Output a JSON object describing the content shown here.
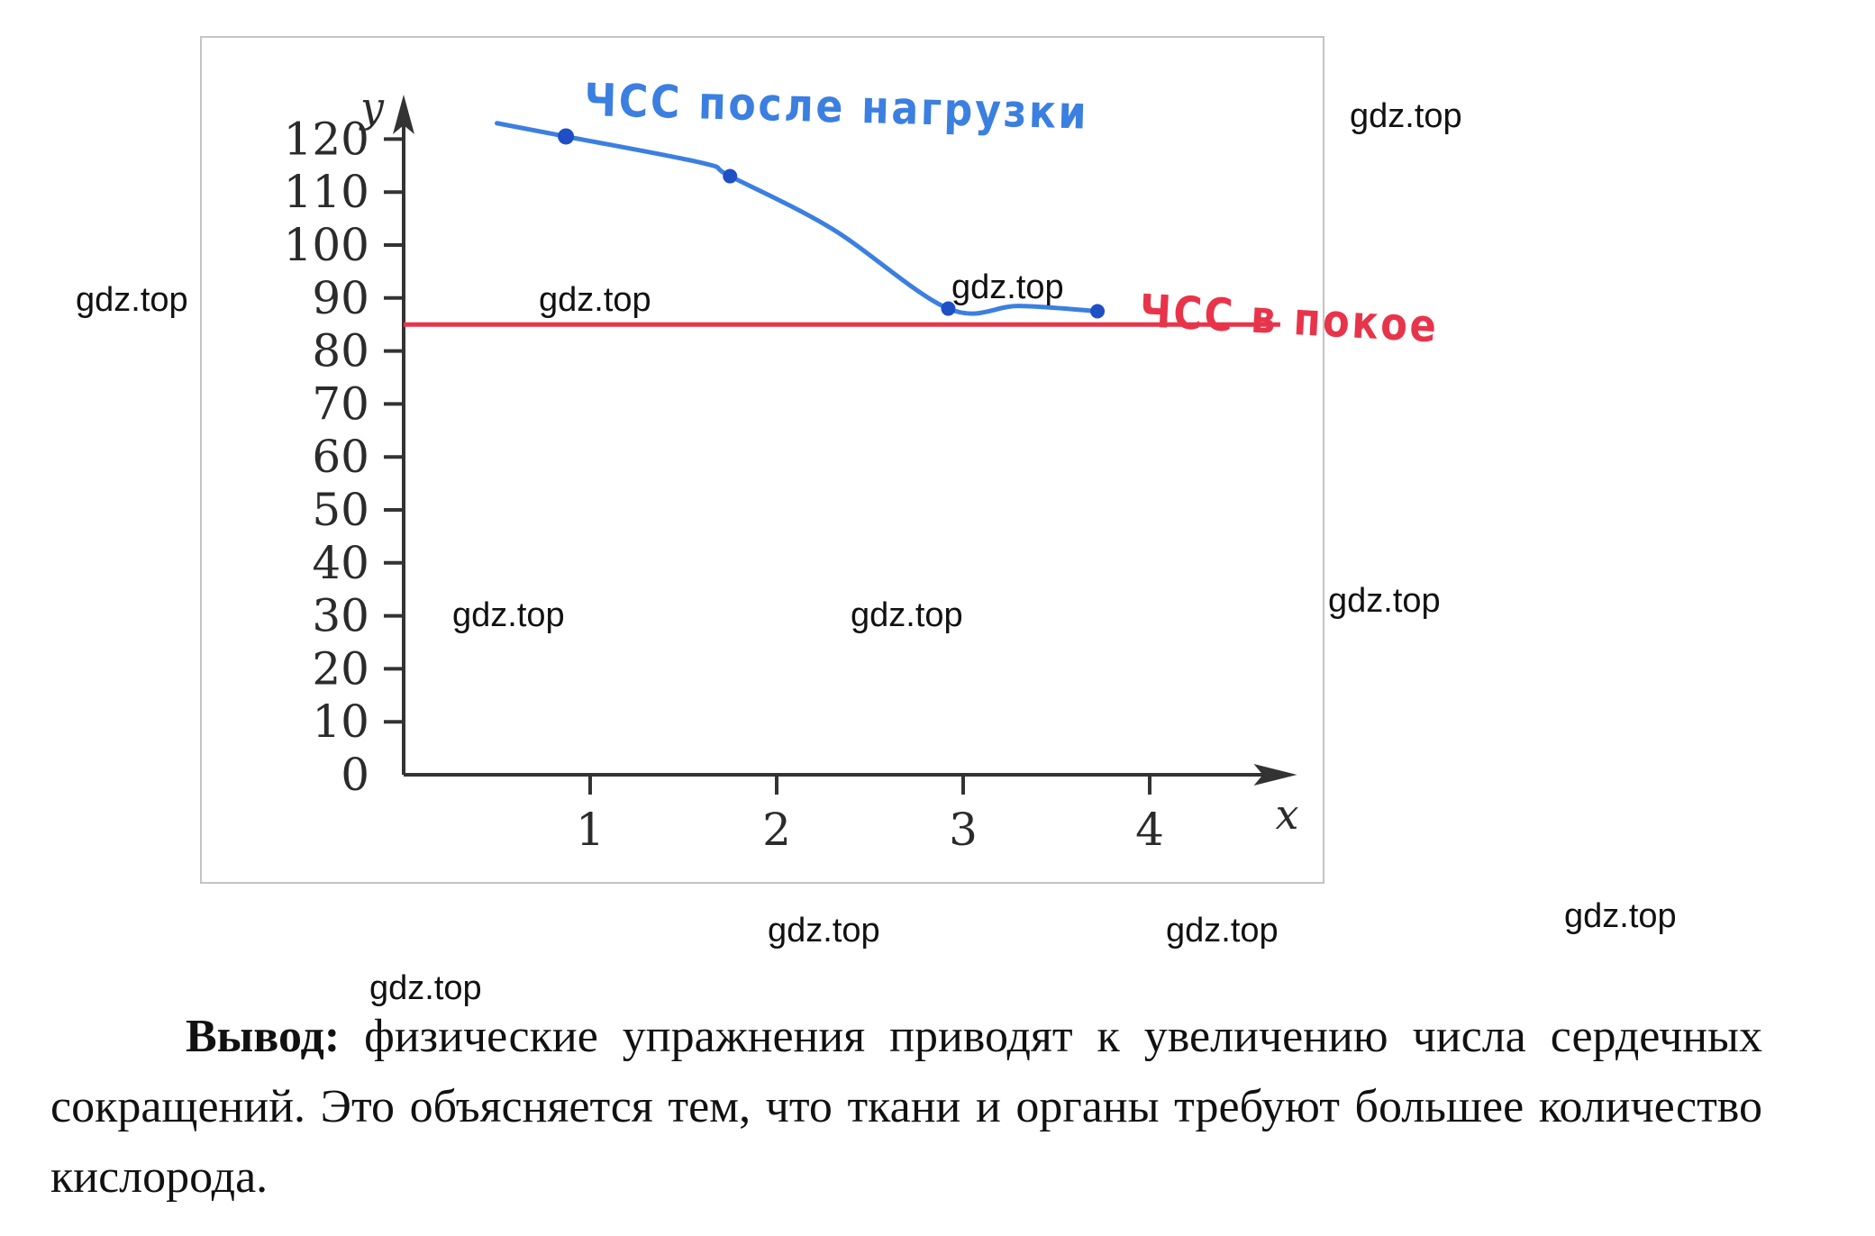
{
  "chart_data": {
    "type": "line",
    "title": "",
    "xlabel": "x",
    "ylabel": "y",
    "xlim": [
      0,
      4.5
    ],
    "ylim": [
      0,
      125
    ],
    "x_ticks": [
      1,
      2,
      3,
      4
    ],
    "y_ticks": [
      0,
      10,
      20,
      30,
      40,
      50,
      60,
      70,
      80,
      90,
      100,
      110,
      120
    ],
    "grid": false,
    "series": [
      {
        "name": "ЧСС после нагрузки",
        "color": "#3b7fe0",
        "x": [
          0.5,
          0.87,
          1.6,
          1.75,
          2.3,
          2.92,
          3.3,
          3.72
        ],
        "y": [
          123,
          120.5,
          115.5,
          113,
          103,
          88,
          88.5,
          87.5
        ],
        "markers_x": [
          0.87,
          1.75,
          2.92,
          3.72
        ],
        "markers_y": [
          120.5,
          113,
          88,
          87.5
        ]
      },
      {
        "name": "ЧСС в покое",
        "color": "#e8344a",
        "x": [
          0,
          4.7
        ],
        "y": [
          85,
          85
        ]
      }
    ]
  },
  "watermark_text": "gdz.top",
  "conclusion": {
    "label": "Вывод:",
    "text": "физические упражнения приводят к увеличению числа сердечных сокращений. Это объясняется тем, что ткани и органы требуют большее количество кислорода."
  }
}
